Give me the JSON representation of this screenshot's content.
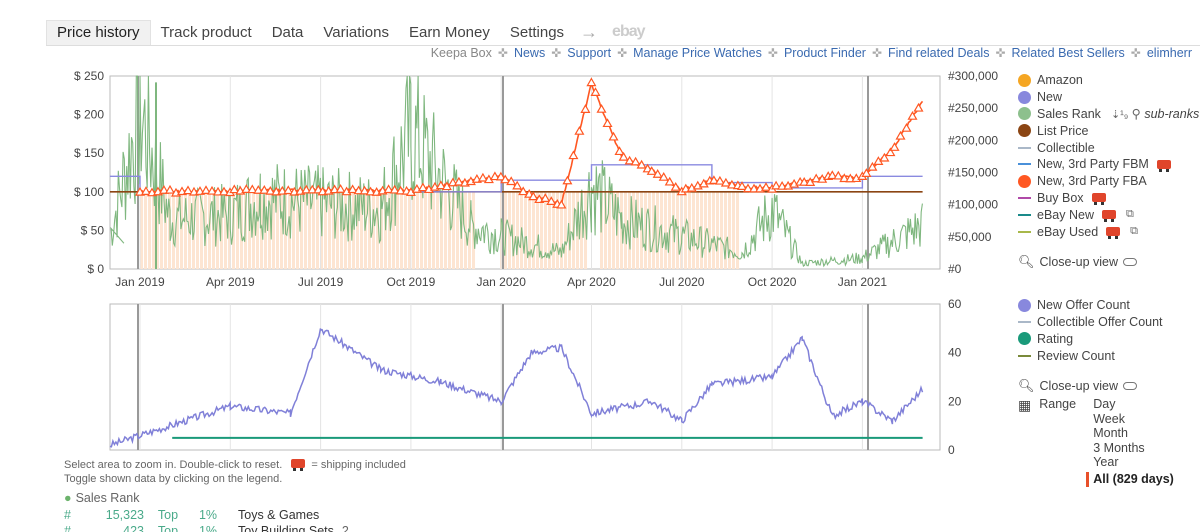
{
  "tabs": [
    {
      "label": "Price history",
      "active": true
    },
    {
      "label": "Track product"
    },
    {
      "label": "Data"
    },
    {
      "label": "Variations"
    },
    {
      "label": "Earn Money"
    },
    {
      "label": "Settings"
    }
  ],
  "tabs_ebay": "ebay",
  "links": {
    "keepa_box": "Keepa Box",
    "items": [
      "News",
      "Support",
      "Manage Price Watches",
      "Product Finder",
      "Find related Deals",
      "Related Best Sellers",
      "elimherr"
    ]
  },
  "legend_top": [
    {
      "label": "Amazon",
      "color": "#f5a623",
      "kind": "dot"
    },
    {
      "label": "New",
      "color": "#8888dd",
      "kind": "dot"
    },
    {
      "label": "Sales Rank",
      "color": "#8dc08d",
      "kind": "dot",
      "extra": "sub-ranks"
    },
    {
      "label": "List Price",
      "color": "#8b4513",
      "kind": "dot"
    },
    {
      "label": "Collectible",
      "color": "#aab8c8",
      "kind": "dash"
    },
    {
      "label": "New, 3rd Party FBM",
      "color": "#4a90d9",
      "kind": "dash",
      "truck": true
    },
    {
      "label": "New, 3rd Party FBA",
      "color": "#ff5722",
      "kind": "dot"
    },
    {
      "label": "Buy Box",
      "color": "#b04aa8",
      "kind": "dash",
      "truck": true
    },
    {
      "label": "eBay New",
      "color": "#1a8a8a",
      "kind": "dash",
      "truck": true,
      "ext": true
    },
    {
      "label": "eBay Used",
      "color": "#a8b84a",
      "kind": "dash",
      "truck": true,
      "ext": true
    }
  ],
  "closeup_label": "Close-up view",
  "legend_bottom": [
    {
      "label": "New Offer Count",
      "color": "#8888dd",
      "kind": "dot"
    },
    {
      "label": "Collectible Offer Count",
      "color": "#aab8c8",
      "kind": "dash"
    },
    {
      "label": "Rating",
      "color": "#1a9a7a",
      "kind": "dot"
    },
    {
      "label": "Review Count",
      "color": "#7a8a3a",
      "kind": "dash"
    }
  ],
  "range": {
    "label": "Range",
    "options": [
      "Day",
      "Week",
      "Month",
      "3 Months",
      "Year"
    ],
    "selected": "All (829 days)"
  },
  "footer": {
    "line1": "Select area to zoom in. Double-click to reset.",
    "shipping": "= shipping included",
    "line2": "Toggle shown data by clicking on the legend."
  },
  "sales_rank": {
    "title": "Sales Rank",
    "rows": [
      {
        "hash": "#",
        "rank": "15,323",
        "top": "Top",
        "pct": "1%",
        "category": "Toys & Games"
      },
      {
        "hash": "#",
        "rank": "423",
        "top": "Top",
        "pct": "1%",
        "category": "Toy Building Sets",
        "count": "2"
      }
    ]
  },
  "chart_data": [
    {
      "type": "line",
      "x_ticks": [
        "Jan 2019",
        "Apr 2019",
        "Jul 2019",
        "Oct 2019",
        "Jan 2020",
        "Apr 2020",
        "Jul 2020",
        "Oct 2020",
        "Jan 2021"
      ],
      "y_left_ticks": [
        "$ 0",
        "$ 50",
        "$ 100",
        "$ 150",
        "$ 200",
        "$ 250"
      ],
      "y_right_ticks": [
        "#0",
        "#50,000",
        "#100,000",
        "#150,000",
        "#200,000",
        "#250,000",
        "#300,000"
      ],
      "ylim_left": [
        0,
        250
      ],
      "ylim_right": [
        0,
        300000
      ],
      "series": [
        {
          "name": "List Price",
          "values": [
            {
              "x": "2018-12",
              "y": 100
            },
            {
              "x": "2021-03",
              "y": 100
            }
          ]
        },
        {
          "name": "New, 3rd Party FBA",
          "values": [
            {
              "x": "2019-01",
              "y": 100
            },
            {
              "x": "2019-04",
              "y": 101
            },
            {
              "x": "2019-07",
              "y": 102
            },
            {
              "x": "2019-10",
              "y": 101
            },
            {
              "x": "2020-01",
              "y": 120
            },
            {
              "x": "2020-02",
              "y": 95
            },
            {
              "x": "2020-03",
              "y": 84
            },
            {
              "x": "2020-04",
              "y": 240
            },
            {
              "x": "2020-05",
              "y": 145
            },
            {
              "x": "2020-06",
              "y": 128
            },
            {
              "x": "2020-07",
              "y": 102
            },
            {
              "x": "2020-08",
              "y": 115
            },
            {
              "x": "2020-09",
              "y": 106
            },
            {
              "x": "2020-10",
              "y": 105
            },
            {
              "x": "2020-11",
              "y": 112
            },
            {
              "x": "2020-12",
              "y": 120
            },
            {
              "x": "2021-01",
              "y": 118
            },
            {
              "x": "2021-02",
              "y": 155
            },
            {
              "x": "2021-03",
              "y": 218
            }
          ]
        },
        {
          "name": "New",
          "values": [
            {
              "x": "2018-12",
              "y": 120
            },
            {
              "x": "2019-01",
              "y": 100
            },
            {
              "x": "2019-10",
              "y": 100
            },
            {
              "x": "2020-01",
              "y": 115
            },
            {
              "x": "2020-04",
              "y": 135
            },
            {
              "x": "2020-06",
              "y": 135
            },
            {
              "x": "2020-08",
              "y": 112
            },
            {
              "x": "2020-10",
              "y": 105
            },
            {
              "x": "2021-01",
              "y": 120
            },
            {
              "x": "2021-03",
              "y": 120
            }
          ]
        },
        {
          "name": "Sales Rank",
          "values": [
            {
              "x": "2018-12",
              "y": 60000
            },
            {
              "x": "2019-01",
              "y": 290000
            },
            {
              "x": "2019-02",
              "y": 90000
            },
            {
              "x": "2019-04",
              "y": 100000
            },
            {
              "x": "2019-05",
              "y": 130000
            },
            {
              "x": "2019-07",
              "y": 120000
            },
            {
              "x": "2019-09",
              "y": 110000
            },
            {
              "x": "2019-10",
              "y": 250000
            },
            {
              "x": "2019-12",
              "y": 80000
            },
            {
              "x": "2020-01",
              "y": 60000
            },
            {
              "x": "2020-03",
              "y": 30000
            },
            {
              "x": "2020-04",
              "y": 150000
            },
            {
              "x": "2020-05",
              "y": 90000
            },
            {
              "x": "2020-07",
              "y": 60000
            },
            {
              "x": "2020-09",
              "y": 30000
            },
            {
              "x": "2020-10",
              "y": 110000
            },
            {
              "x": "2020-11",
              "y": 10000
            },
            {
              "x": "2021-01",
              "y": 20000
            },
            {
              "x": "2021-03",
              "y": 80000
            }
          ]
        }
      ]
    },
    {
      "type": "line",
      "x_ticks": [
        "Jan 2019",
        "Apr 2019",
        "Jul 2019",
        "Oct 2019",
        "Jan 2020",
        "Apr 2020",
        "Jul 2020",
        "Oct 2020",
        "Jan 2021"
      ],
      "y_right_ticks": [
        "0",
        "20",
        "40",
        "60"
      ],
      "ylim": [
        0,
        60
      ],
      "series": [
        {
          "name": "New Offer Count",
          "values": [
            {
              "x": "2018-12",
              "y": 2
            },
            {
              "x": "2019-02",
              "y": 10
            },
            {
              "x": "2019-04",
              "y": 18
            },
            {
              "x": "2019-06",
              "y": 15
            },
            {
              "x": "2019-07",
              "y": 50
            },
            {
              "x": "2019-09",
              "y": 33
            },
            {
              "x": "2019-11",
              "y": 28
            },
            {
              "x": "2020-01",
              "y": 20
            },
            {
              "x": "2020-02",
              "y": 40
            },
            {
              "x": "2020-03",
              "y": 42
            },
            {
              "x": "2020-04",
              "y": 15
            },
            {
              "x": "2020-06",
              "y": 20
            },
            {
              "x": "2020-07",
              "y": 12
            },
            {
              "x": "2020-08",
              "y": 27
            },
            {
              "x": "2020-10",
              "y": 30
            },
            {
              "x": "2020-11",
              "y": 46
            },
            {
              "x": "2020-12",
              "y": 14
            },
            {
              "x": "2021-01",
              "y": 20
            },
            {
              "x": "2021-02",
              "y": 12
            },
            {
              "x": "2021-03",
              "y": 25
            }
          ]
        },
        {
          "name": "Rating",
          "values": [
            {
              "x": "2019-03",
              "y": 5
            },
            {
              "x": "2021-03",
              "y": 5
            }
          ]
        }
      ]
    }
  ]
}
